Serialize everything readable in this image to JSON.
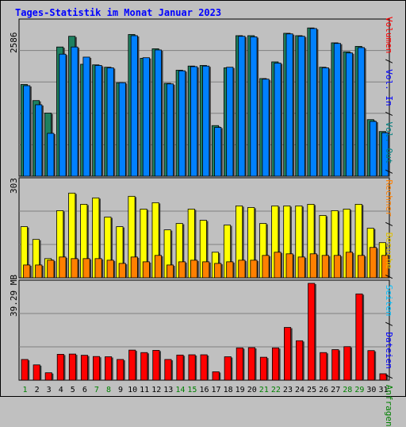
{
  "title": "Tages-Statistik im Monat Januar 2023",
  "axis_labels": {
    "top_max": "2586",
    "middle_max": "303",
    "bottom_max": "39.29 MB"
  },
  "right_legend": [
    {
      "text": "Volumen",
      "color": "#ff0000"
    },
    {
      "text": " / ",
      "color": "#000000"
    },
    {
      "text": "Vol. In",
      "color": "#0000ff"
    },
    {
      "text": " / ",
      "color": "#000000"
    },
    {
      "text": "Vol. Out",
      "color": "#008080"
    },
    {
      "text": " / ",
      "color": "#000000"
    },
    {
      "text": "Rechner",
      "color": "#ff8000"
    },
    {
      "text": " / ",
      "color": "#000000"
    },
    {
      "text": "Besuche",
      "color": "#e0c000"
    },
    {
      "text": " / ",
      "color": "#000000"
    },
    {
      "text": "Seiten",
      "color": "#00c0ff"
    },
    {
      "text": " / ",
      "color": "#000000"
    },
    {
      "text": "Dateien",
      "color": "#0000ff"
    },
    {
      "text": " / ",
      "color": "#000000"
    },
    {
      "text": "Anfragen",
      "color": "#008000"
    }
  ],
  "colors": {
    "anfragen": "#1e8060",
    "dateien": "#0080ff",
    "seiten": "#00d8ff",
    "besuche": "#ffff00",
    "rechner": "#ff8000",
    "volumen": "#ff0000",
    "panel_bg": "#c0c0c0",
    "grid": "#808080",
    "weekend_label": "#008000",
    "weekday_label": "#000000"
  },
  "chart_data": [
    {
      "type": "bar",
      "categories": [
        "1",
        "2",
        "3",
        "4",
        "5",
        "6",
        "7",
        "8",
        "9",
        "10",
        "11",
        "12",
        "13",
        "14",
        "15",
        "16",
        "17",
        "18",
        "19",
        "20",
        "21",
        "22",
        "23",
        "24",
        "25",
        "26",
        "27",
        "28",
        "29",
        "30",
        "31"
      ],
      "weekend_days": [
        "1",
        "7",
        "8",
        "14",
        "15",
        "21",
        "22",
        "28",
        "29"
      ],
      "ylim": [
        0,
        2586
      ],
      "series": [
        {
          "name": "Anfragen",
          "values": [
            1540,
            1270,
            1060,
            2170,
            2350,
            1880,
            1870,
            1830,
            1570,
            2380,
            1980,
            2140,
            1560,
            1780,
            1850,
            1860,
            850,
            1820,
            2360,
            2360,
            1640,
            1920,
            2400,
            2360,
            2490,
            1830,
            2240,
            2090,
            2180,
            950,
            750
          ]
        },
        {
          "name": "Dateien",
          "values": [
            1520,
            1200,
            720,
            2050,
            2170,
            2000,
            1860,
            1820,
            1570,
            2360,
            1990,
            2120,
            1550,
            1770,
            1840,
            1850,
            820,
            1830,
            2350,
            2340,
            1630,
            1900,
            2390,
            2350,
            2480,
            1820,
            2230,
            2070,
            2160,
            920,
            730
          ]
        }
      ]
    },
    {
      "type": "bar",
      "categories": [
        "1",
        "2",
        "3",
        "4",
        "5",
        "6",
        "7",
        "8",
        "9",
        "10",
        "11",
        "12",
        "13",
        "14",
        "15",
        "16",
        "17",
        "18",
        "19",
        "20",
        "21",
        "22",
        "23",
        "24",
        "25",
        "26",
        "27",
        "28",
        "29",
        "30",
        "31"
      ],
      "ylim": [
        0,
        303
      ],
      "series": [
        {
          "name": "Besuche",
          "values": [
            160,
            120,
            60,
            210,
            265,
            230,
            250,
            190,
            160,
            255,
            215,
            235,
            150,
            170,
            215,
            180,
            80,
            165,
            225,
            220,
            170,
            225,
            225,
            225,
            230,
            195,
            210,
            215,
            230,
            155,
            110
          ]
        },
        {
          "name": "Rechner",
          "values": [
            40,
            40,
            55,
            65,
            60,
            60,
            60,
            55,
            45,
            65,
            50,
            70,
            40,
            50,
            55,
            50,
            45,
            50,
            55,
            55,
            70,
            80,
            75,
            65,
            75,
            70,
            70,
            80,
            70,
            95,
            70
          ]
        }
      ]
    },
    {
      "type": "bar",
      "categories": [
        "1",
        "2",
        "3",
        "4",
        "5",
        "6",
        "7",
        "8",
        "9",
        "10",
        "11",
        "12",
        "13",
        "14",
        "15",
        "16",
        "17",
        "18",
        "19",
        "20",
        "21",
        "22",
        "23",
        "24",
        "25",
        "26",
        "27",
        "28",
        "29",
        "30",
        "31"
      ],
      "ylim": [
        0,
        39.29
      ],
      "ylabel": "MB",
      "series": [
        {
          "name": "Volumen",
          "values": [
            8.4,
            6.2,
            3.0,
            10.5,
            10.6,
            10.1,
            9.6,
            9.5,
            8.4,
            12.2,
            11.2,
            12.1,
            8.4,
            10.2,
            10.3,
            10.3,
            3.4,
            9.5,
            13.1,
            13.2,
            9.3,
            13.1,
            21.4,
            16.0,
            39.29,
            11.2,
            12.4,
            13.6,
            35.0,
            12.0,
            2.6
          ]
        }
      ]
    }
  ]
}
